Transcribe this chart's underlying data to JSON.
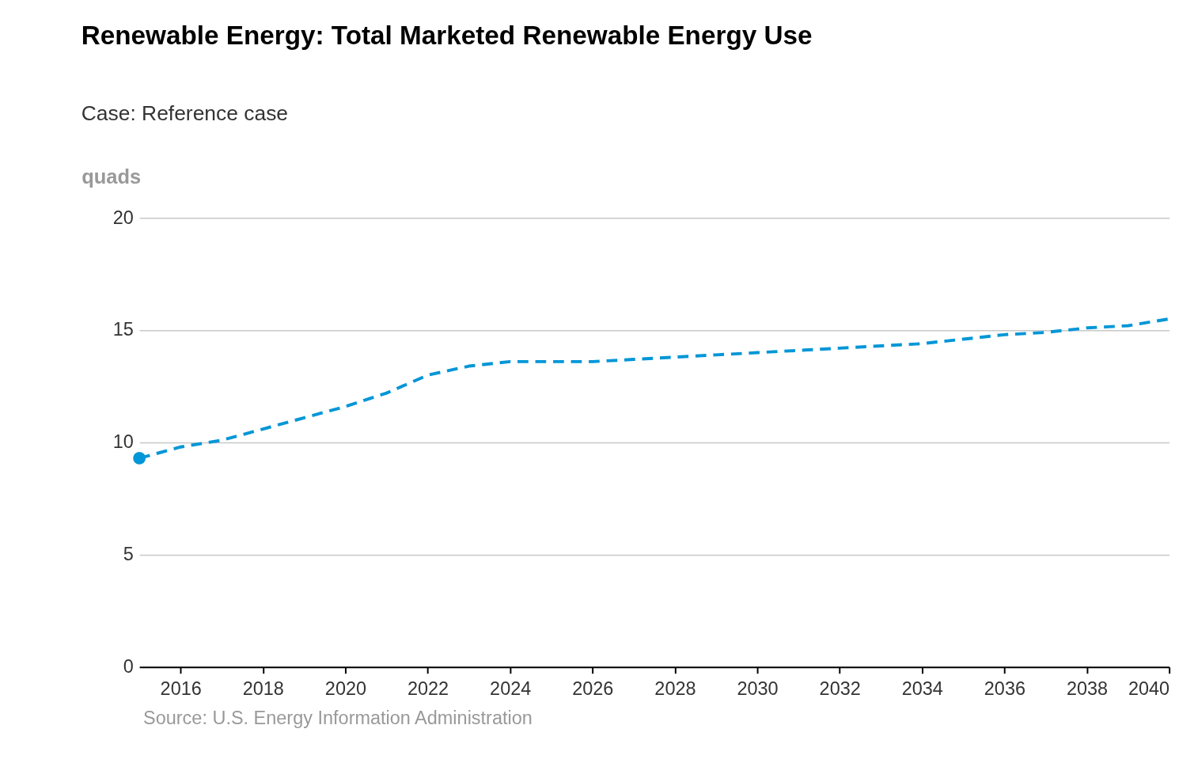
{
  "chart_data": {
    "type": "line",
    "title": "Renewable Energy: Total Marketed Renewable Energy Use",
    "subtitle": "Case: Reference case",
    "ylabel": "quads",
    "x": [
      2015,
      2016,
      2017,
      2018,
      2019,
      2020,
      2021,
      2022,
      2023,
      2024,
      2025,
      2026,
      2027,
      2028,
      2029,
      2030,
      2031,
      2032,
      2033,
      2034,
      2035,
      2036,
      2037,
      2038,
      2039,
      2040
    ],
    "series": [
      {
        "color": "#0096d7",
        "line_style": "dashed",
        "values": [
          9.3,
          9.8,
          10.1,
          10.6,
          11.1,
          11.6,
          12.2,
          13.0,
          13.4,
          13.6,
          13.6,
          13.6,
          13.7,
          13.8,
          13.9,
          14.0,
          14.1,
          14.2,
          14.3,
          14.4,
          14.6,
          14.8,
          14.9,
          15.1,
          15.2,
          15.5
        ]
      },
      {
        "type": "scatter",
        "color": "#0096d7",
        "marker": "circle",
        "x": [
          2015
        ],
        "values": [
          9.3
        ]
      }
    ],
    "xlim": [
      2015,
      2040
    ],
    "xticks": [
      2016,
      2018,
      2020,
      2022,
      2024,
      2026,
      2028,
      2030,
      2032,
      2034,
      2036,
      2038,
      2040
    ],
    "ylim": [
      0,
      20
    ],
    "yticks": [
      0,
      5,
      10,
      15,
      20
    ],
    "grid": "y",
    "annotations": [
      "Source: U.S. Energy Information Administration"
    ]
  }
}
